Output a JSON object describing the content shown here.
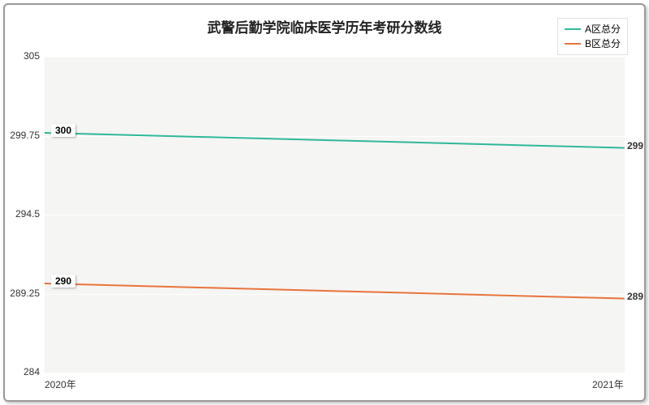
{
  "chart": {
    "type": "line",
    "title": "武警后勤学院临床医学历年考研分数线",
    "title_fontsize": 17,
    "title_color": "#222222",
    "background_color": "#ffffff",
    "plot_background": "#f5f5f3",
    "border_color": "#999999",
    "grid_color": "#ffffff",
    "ylim": [
      284,
      305
    ],
    "yticks": [
      284,
      289.25,
      294.5,
      299.75,
      305
    ],
    "xcategories": [
      "2020年",
      "2021年"
    ],
    "series": [
      {
        "name": "A区总分",
        "color": "#2fb89a",
        "values": [
          300,
          299
        ],
        "left_label": "300",
        "right_label": "299"
      },
      {
        "name": "B区总分",
        "color": "#e8743b",
        "values": [
          290,
          289
        ],
        "left_label": "290",
        "right_label": "289"
      }
    ],
    "axis_fontsize": 12,
    "axis_color": "#333333",
    "label_box_bg": "#ffffff"
  }
}
